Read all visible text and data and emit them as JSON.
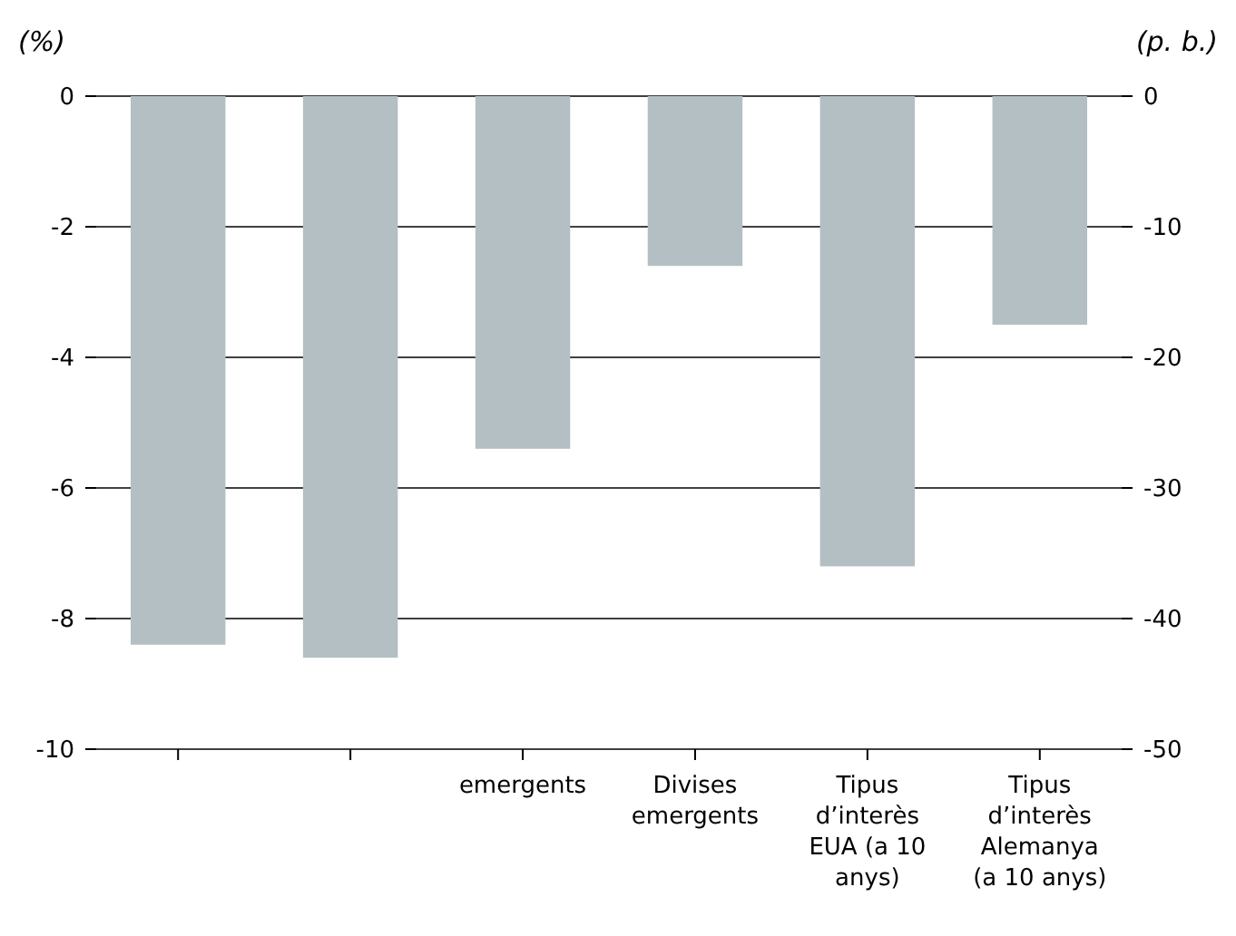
{
  "chart_data": {
    "type": "bar",
    "ylabel": "(%)",
    "y2label": "(p. b.)",
    "categories": [
      null,
      null,
      "emergents",
      "Divises emergents",
      "Tipus d’interès EUA (a 10 anys)",
      "Tipus d’interès Alemanya (a 10 anys)"
    ],
    "series": [
      {
        "color": "#b3bfc3",
        "values": [
          -8.4,
          -8.6,
          -5.4,
          -2.6,
          null,
          null
        ]
      },
      {
        "color": "#b3bfc3",
        "axis": "y2",
        "values": [
          null,
          null,
          null,
          null,
          -36,
          -17.5
        ]
      }
    ],
    "ylim": [
      -10,
      0
    ],
    "yticks": [
      -10,
      -8,
      -6,
      -4,
      -2,
      0
    ],
    "y2lim": [
      -50,
      0
    ],
    "y2ticks": [
      -50,
      -40,
      -30,
      -20,
      -10,
      0
    ],
    "grid": "y"
  }
}
